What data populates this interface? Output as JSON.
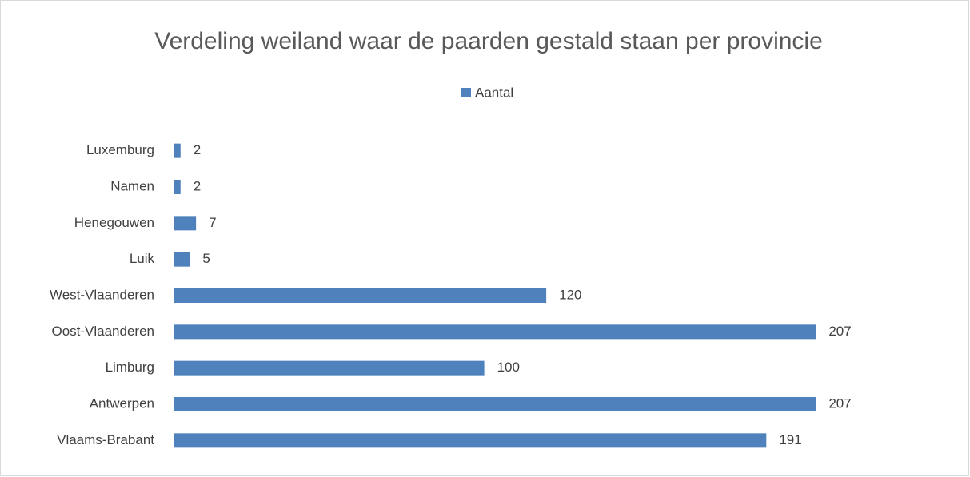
{
  "chart_data": {
    "type": "bar",
    "orientation": "horizontal",
    "title": "Verdeling weiland waar de paarden gestald staan per provincie",
    "categories": [
      "Luxemburg",
      "Namen",
      "Henegouwen",
      "Luik",
      "West-Vlaanderen",
      "Oost-Vlaanderen",
      "Limburg",
      "Antwerpen",
      "Vlaams-Brabant"
    ],
    "series": [
      {
        "name": "Aantal",
        "color": "#4f81bd",
        "values": [
          2,
          2,
          7,
          5,
          120,
          207,
          100,
          207,
          191
        ]
      }
    ],
    "xlim": [
      0,
      250
    ],
    "legend": "top"
  }
}
